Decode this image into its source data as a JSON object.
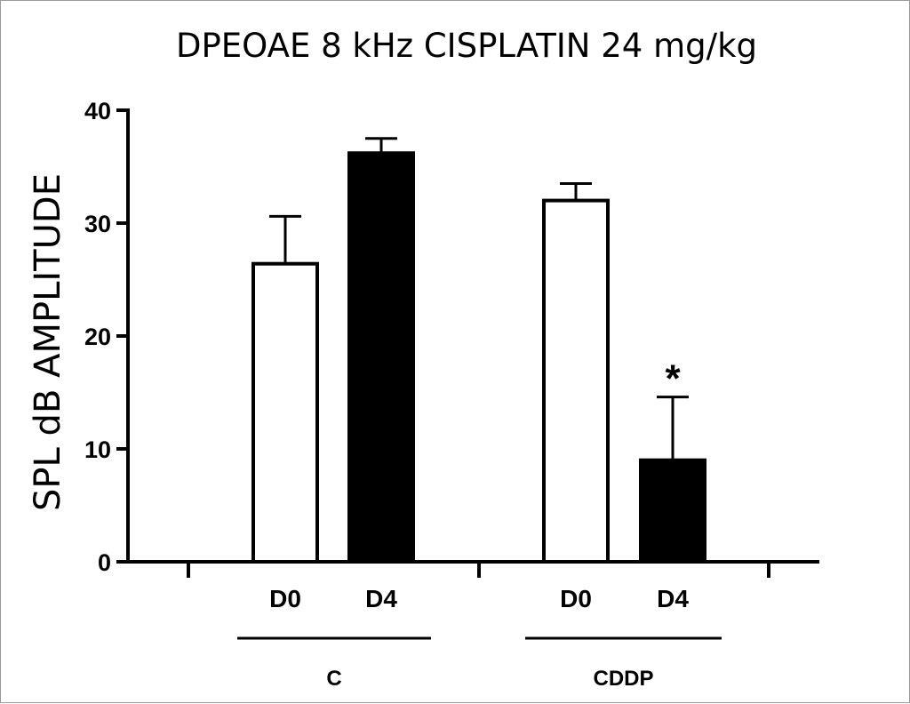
{
  "chart_data": {
    "type": "bar",
    "title": "DPEOAE 8 kHz CISPLATIN 24 mg/kg",
    "ylabel": "SPL dB AMPLITUDE",
    "xlabel": "",
    "ylim": [
      0,
      40
    ],
    "yticks": [
      "0",
      "10",
      "20",
      "30",
      "40"
    ],
    "grid": false,
    "groups": [
      {
        "name": "C",
        "bars": [
          {
            "label": "D0",
            "value": 26.4,
            "error": 4.2,
            "fill": "#ffffff",
            "marker": ""
          },
          {
            "label": "D4",
            "value": 36.2,
            "error": 1.3,
            "fill": "#000000",
            "marker": ""
          }
        ]
      },
      {
        "name": "CDDP",
        "bars": [
          {
            "label": "D0",
            "value": 32.0,
            "error": 1.5,
            "fill": "#ffffff",
            "marker": ""
          },
          {
            "label": "D4",
            "value": 9.0,
            "error": 5.6,
            "fill": "#000000",
            "marker": "*"
          }
        ]
      }
    ]
  }
}
